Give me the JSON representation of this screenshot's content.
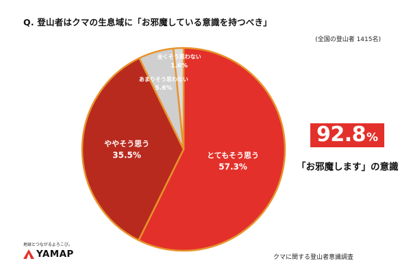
{
  "question": "Q. 登山者はクマの生息域に「お邪魔している意識を持つべき」",
  "respondents_note": "(全国の登山者 1415名)",
  "highlight": {
    "value": "92.8",
    "unit": "%",
    "caption": "「お邪魔します」の意識"
  },
  "logo": {
    "tagline": "地球とつながるよろこび。",
    "name": "YAMAP"
  },
  "source": "クマに関する登山者意識調査",
  "colors": {
    "accent": "#e3302a",
    "border": "#e8932c",
    "text": "#111111"
  },
  "chart_data": {
    "type": "pie",
    "title": "Q. 登山者はクマの生息域に「お邪魔している意識を持つべき」",
    "start_angle_deg": 0,
    "direction": "clockwise",
    "slices": [
      {
        "label": "とてもそう思う",
        "value": 57.3,
        "value_label": "57.3%",
        "color": "#e3302a",
        "text_color": "#ffffff"
      },
      {
        "label": "ややそう思う",
        "value": 35.5,
        "value_label": "35.5%",
        "color": "#b82a1e",
        "text_color": "#ffffff"
      },
      {
        "label": "あまりそう思わない",
        "value": 5.6,
        "value_label": "5.6%",
        "color": "#cfcfcf",
        "text_color": "#ffffff"
      },
      {
        "label": "全くそう思わない",
        "value": 1.6,
        "value_label": "1.6%",
        "color": "#dcdcdc",
        "text_color": "#ffffff"
      }
    ]
  }
}
